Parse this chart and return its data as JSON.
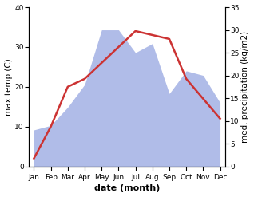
{
  "months": [
    "Jan",
    "Feb",
    "Mar",
    "Apr",
    "May",
    "Jun",
    "Jul",
    "Aug",
    "Sep",
    "Oct",
    "Nov",
    "Dec"
  ],
  "month_indices": [
    0,
    1,
    2,
    3,
    4,
    5,
    6,
    7,
    8,
    9,
    10,
    11
  ],
  "temperature": [
    2,
    10,
    20,
    22,
    26,
    30,
    34,
    33,
    32,
    22,
    17,
    12
  ],
  "precipitation": [
    8,
    9,
    13,
    18,
    30,
    30,
    25,
    27,
    16,
    21,
    20,
    14
  ],
  "temp_color": "#cc3333",
  "precip_color": "#b0bce8",
  "temp_ylim": [
    0,
    40
  ],
  "precip_ylim": [
    0,
    35
  ],
  "temp_yticks": [
    0,
    10,
    20,
    30,
    40
  ],
  "precip_yticks": [
    0,
    5,
    10,
    15,
    20,
    25,
    30,
    35
  ],
  "ylabel_left": "max temp (C)",
  "ylabel_right": "med. precipitation (kg/m2)",
  "xlabel": "date (month)",
  "figsize": [
    3.18,
    2.47
  ],
  "dpi": 100,
  "line_width": 1.8,
  "xlabel_fontsize": 8,
  "ylabel_fontsize": 7.5,
  "tick_fontsize": 6.5
}
